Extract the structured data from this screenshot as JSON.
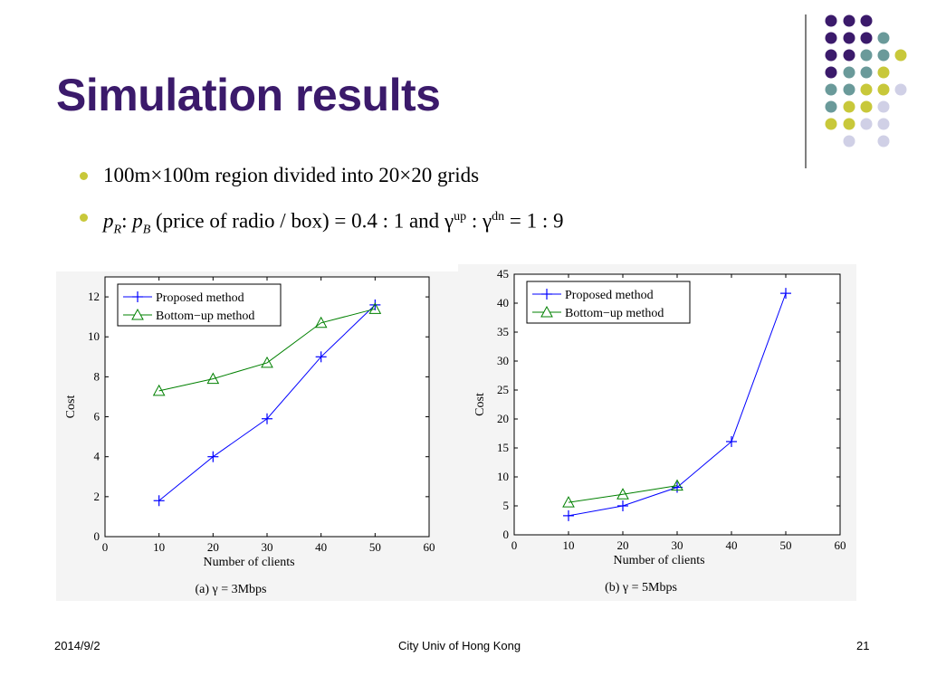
{
  "slide": {
    "title": "Simulation results",
    "bullets": [
      {
        "parts": [
          "100m",
          "×",
          "100m region divided into 20",
          "×",
          "20 grids"
        ]
      },
      {
        "pR": "p",
        "pR_sub": "R",
        "pB": "p",
        "pB_sub": "B",
        "text1": " (price of radio / box) = 0.4 : 1 and ",
        "g1": "γ",
        "g1_sup": "up",
        "colon": " : ",
        "g2": "γ",
        "g2_sup": "dn",
        "text2": " = 1 : 9"
      }
    ],
    "footer": {
      "date": "2014/9/2",
      "center": "City Univ of Hong Kong",
      "page": "21"
    },
    "colors": {
      "title": "#3b1a6b",
      "bullet": "#c8c83a",
      "purple": "#3b1a6b",
      "teal": "#6a9a9a",
      "yellow": "#c8c83a",
      "lilac": "#d0d0e6"
    }
  },
  "chart_data": [
    {
      "type": "line",
      "caption": "(a) γ = 3Mbps",
      "xlabel": "Number of clients",
      "ylabel": "Cost",
      "xlim": [
        0,
        60
      ],
      "ylim": [
        0,
        13
      ],
      "xticks": [
        0,
        10,
        20,
        30,
        40,
        50,
        60
      ],
      "yticks": [
        0,
        2,
        4,
        6,
        8,
        10,
        12
      ],
      "legend_position": "top-left",
      "series": [
        {
          "name": "Proposed method",
          "color": "#0000ff",
          "marker": "plus",
          "x": [
            10,
            20,
            30,
            40,
            50
          ],
          "y": [
            1.8,
            4.0,
            5.9,
            9.0,
            11.6
          ]
        },
        {
          "name": "Bottom−up method",
          "color": "#008000",
          "marker": "triangle",
          "x": [
            10,
            20,
            30,
            40,
            50
          ],
          "y": [
            7.3,
            7.9,
            8.7,
            10.7,
            11.4
          ]
        }
      ]
    },
    {
      "type": "line",
      "caption": "(b) γ = 5Mbps",
      "xlabel": "Number of clients",
      "ylabel": "Cost",
      "xlim": [
        0,
        60
      ],
      "ylim": [
        0,
        45
      ],
      "xticks": [
        0,
        10,
        20,
        30,
        40,
        50,
        60
      ],
      "yticks": [
        0,
        5,
        10,
        15,
        20,
        25,
        30,
        35,
        40,
        45
      ],
      "legend_position": "top-left",
      "series": [
        {
          "name": "Proposed method",
          "color": "#0000ff",
          "marker": "plus",
          "x": [
            10,
            20,
            30,
            40,
            50
          ],
          "y": [
            3.3,
            5.0,
            8.2,
            16.1,
            41.7
          ]
        },
        {
          "name": "Bottom−up method",
          "color": "#008000",
          "marker": "triangle",
          "x": [
            10,
            20,
            30
          ],
          "y": [
            5.6,
            7.0,
            8.5
          ]
        }
      ]
    }
  ]
}
